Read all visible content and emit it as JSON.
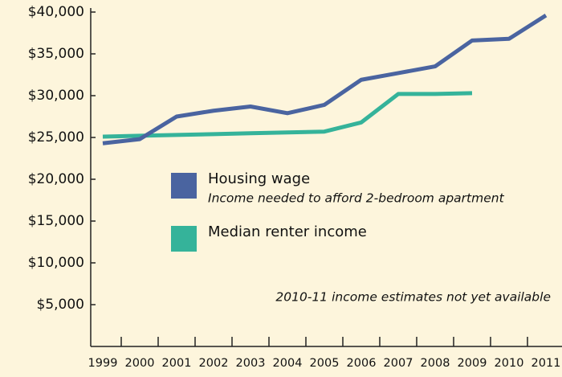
{
  "chart_data": {
    "type": "line",
    "categories": [
      "1999",
      "2000",
      "2001",
      "2002",
      "2003",
      "2004",
      "2005",
      "2006",
      "2007",
      "2008",
      "2009",
      "2010",
      "2011"
    ],
    "series": [
      {
        "name": "Housing wage",
        "note": "Income needed to afford 2-bedroom apartment",
        "color": "#4a64a0",
        "values": [
          24300,
          24800,
          27500,
          28200,
          28700,
          27900,
          28900,
          31900,
          32700,
          33500,
          36600,
          36800,
          39600
        ]
      },
      {
        "name": "Median renter income",
        "color": "#35b39a",
        "values": [
          25100,
          25200,
          25300,
          25400,
          25500,
          25600,
          25700,
          26800,
          30200,
          30200,
          30300,
          null,
          null
        ]
      }
    ],
    "ylim": [
      0,
      40000
    ],
    "yticks": [
      {
        "value": 5000,
        "label": "$5,000"
      },
      {
        "value": 10000,
        "label": "$10,000"
      },
      {
        "value": 15000,
        "label": "$15,000"
      },
      {
        "value": 20000,
        "label": "$20,000"
      },
      {
        "value": 25000,
        "label": "$25,000"
      },
      {
        "value": 30000,
        "label": "$30,000"
      },
      {
        "value": 35000,
        "label": "$35,000"
      },
      {
        "value": 40000,
        "label": "$40,000"
      }
    ],
    "annotation": "2010-11 income estimates not yet available"
  }
}
